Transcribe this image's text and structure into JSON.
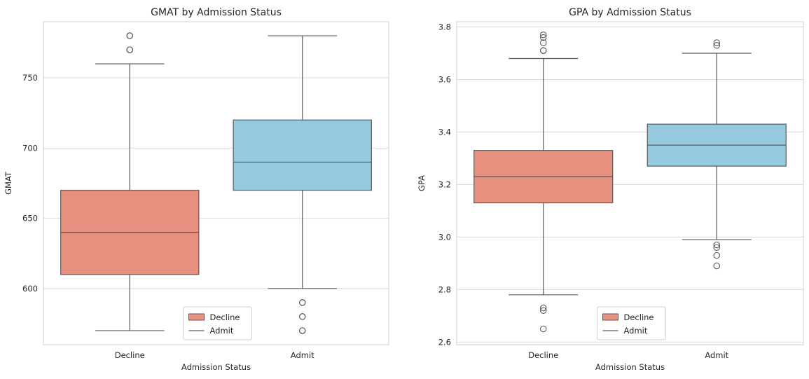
{
  "chart_data": [
    {
      "type": "box",
      "title": "GMAT by Admission Status",
      "xlabel": "Admission Status",
      "ylabel": "GMAT",
      "categories": [
        "Decline",
        "Admit"
      ],
      "ylim": [
        560,
        790
      ],
      "yticks": [
        600,
        650,
        700,
        750
      ],
      "grid": true,
      "legend": {
        "placement": "lower center",
        "entries": [
          "Decline",
          "Admit"
        ]
      },
      "boxes": [
        {
          "category": "Decline",
          "whisker_low": 570,
          "q1": 610,
          "median": 640,
          "q3": 670,
          "whisker_high": 760,
          "outliers": [
            770,
            770,
            780,
            780
          ],
          "color": "#e8907f"
        },
        {
          "category": "Admit",
          "whisker_low": 600,
          "q1": 670,
          "median": 690,
          "q3": 720,
          "whisker_high": 780,
          "outliers": [
            590,
            590,
            580,
            580,
            570,
            570
          ],
          "color": "#94c9df"
        }
      ]
    },
    {
      "type": "box",
      "title": "GPA by Admission Status",
      "xlabel": "Admission Status",
      "ylabel": "GPA",
      "categories": [
        "Decline",
        "Admit"
      ],
      "ylim": [
        2.59,
        3.82
      ],
      "yticks": [
        2.6,
        2.8,
        3.0,
        3.2,
        3.4,
        3.6,
        3.8
      ],
      "grid": true,
      "legend": {
        "placement": "lower center",
        "entries": [
          "Decline",
          "Admit"
        ]
      },
      "boxes": [
        {
          "category": "Decline",
          "whisker_low": 2.78,
          "q1": 3.13,
          "median": 3.23,
          "q3": 3.33,
          "whisker_high": 3.68,
          "outliers": [
            3.71,
            3.71,
            3.74,
            3.76,
            3.77,
            2.72,
            2.73,
            2.65
          ],
          "color": "#e8907f"
        },
        {
          "category": "Admit",
          "whisker_low": 2.99,
          "q1": 3.27,
          "median": 3.35,
          "q3": 3.43,
          "whisker_high": 3.7,
          "outliers": [
            3.73,
            3.74,
            2.96,
            2.97,
            2.93,
            2.89
          ],
          "color": "#94c9df"
        }
      ]
    }
  ]
}
